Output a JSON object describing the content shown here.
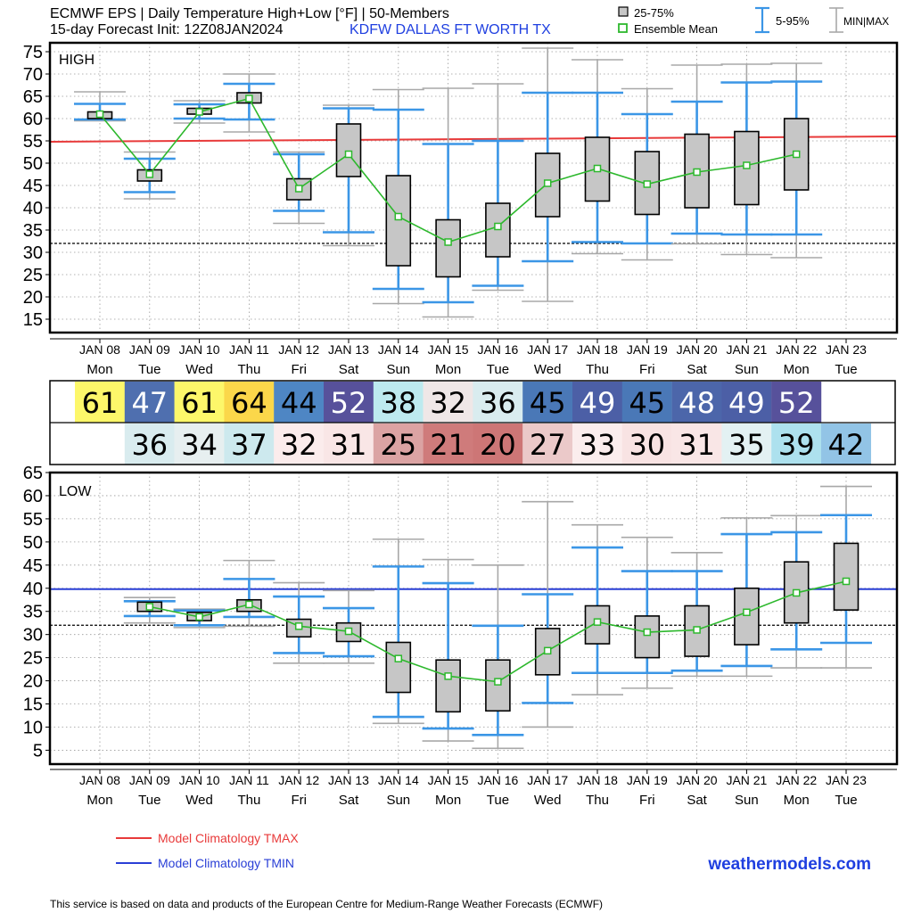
{
  "header": {
    "title_line1": "ECMWF EPS | Daily Temperature High+Low [°F] | 50-Members",
    "title_line2": "15-day Forecast Init: 12Z08JAN2024",
    "station": "KDFW  DALLAS FT WORTH TX"
  },
  "legend_top": {
    "box_label": "25-75%",
    "mean_label": "Ensemble Mean",
    "whisker_label": "5-95%",
    "minmax_label": "MIN|MAX"
  },
  "legend_bottom": {
    "tmax_label": "Model Climatology TMAX",
    "tmin_label": "Model Climatology TMIN"
  },
  "brand": "weathermodels.com",
  "footer": "This service is based on data and products of the European Centre for Medium-Range Weather Forecasts (ECMWF)",
  "colors": {
    "tmax_climo": "#e83a3a",
    "tmin_climo": "#2a3fd6",
    "whisker": "#3b96e6",
    "minmax": "#a8a8a8",
    "box_fill": "#c6c6c6",
    "mean": "#2db82d",
    "station": "#1f3fe0",
    "brand": "#1f3fe0"
  },
  "chart_data": [
    {
      "type": "box",
      "panel_label": "HIGH",
      "ylim": [
        12,
        77
      ],
      "yticks": [
        15,
        20,
        25,
        30,
        35,
        40,
        45,
        50,
        55,
        60,
        65,
        70,
        75
      ],
      "freezing_line": 32,
      "categories": [
        "JAN 08",
        "JAN 09",
        "JAN 10",
        "JAN 11",
        "JAN 12",
        "JAN 13",
        "JAN 14",
        "JAN 15",
        "JAN 16",
        "JAN 17",
        "JAN 18",
        "JAN 19",
        "JAN 20",
        "JAN 21",
        "JAN 22",
        "JAN 23"
      ],
      "weekdays": [
        "Mon",
        "Tue",
        "Wed",
        "Thu",
        "Fri",
        "Sat",
        "Sun",
        "Mon",
        "Tue",
        "Wed",
        "Thu",
        "Fri",
        "Sat",
        "Sun",
        "Mon",
        "Tue"
      ],
      "climatology": [
        54.8,
        56.0
      ],
      "series": [
        {
          "day": 0,
          "min": 59.5,
          "p5": 59.8,
          "q1": 60.0,
          "q3": 61.5,
          "p95": 63.3,
          "max": 66.0,
          "mean": 61.0
        },
        {
          "day": 1,
          "min": 42.0,
          "p5": 43.5,
          "q1": 46.0,
          "q3": 48.5,
          "p95": 51.0,
          "max": 52.5,
          "mean": 47.5
        },
        {
          "day": 2,
          "min": 59.0,
          "p5": 60.0,
          "q1": 61.0,
          "q3": 62.3,
          "p95": 63.2,
          "max": 64.0,
          "mean": 61.5
        },
        {
          "day": 3,
          "min": 57.0,
          "p5": 59.8,
          "q1": 63.5,
          "q3": 65.8,
          "p95": 67.8,
          "max": 70.0,
          "mean": 64.5
        },
        {
          "day": 4,
          "min": 36.5,
          "p5": 39.3,
          "q1": 41.8,
          "q3": 46.5,
          "p95": 52.0,
          "max": 52.5,
          "mean": 44.3
        },
        {
          "day": 5,
          "min": 31.5,
          "p5": 34.5,
          "q1": 47.0,
          "q3": 58.8,
          "p95": 62.3,
          "max": 63.0,
          "mean": 52.0
        },
        {
          "day": 6,
          "min": 18.5,
          "p5": 21.8,
          "q1": 27.0,
          "q3": 47.2,
          "p95": 62.0,
          "max": 66.5,
          "mean": 38.0
        },
        {
          "day": 7,
          "min": 15.5,
          "p5": 18.8,
          "q1": 24.5,
          "q3": 37.3,
          "p95": 54.3,
          "max": 66.8,
          "mean": 32.3
        },
        {
          "day": 8,
          "min": 21.5,
          "p5": 22.5,
          "q1": 29.0,
          "q3": 41.0,
          "p95": 55.0,
          "max": 67.8,
          "mean": 35.8
        },
        {
          "day": 9,
          "min": 19.0,
          "p5": 28.0,
          "q1": 38.0,
          "q3": 52.2,
          "p95": 65.8,
          "max": 75.8,
          "mean": 45.5
        },
        {
          "day": 10,
          "min": 29.7,
          "p5": 32.3,
          "q1": 41.5,
          "q3": 55.8,
          "p95": 65.8,
          "max": 73.2,
          "mean": 48.8
        },
        {
          "day": 11,
          "min": 28.3,
          "p5": 32.0,
          "q1": 38.5,
          "q3": 52.6,
          "p95": 61.0,
          "max": 66.7,
          "mean": 45.3
        },
        {
          "day": 12,
          "min": 31.9,
          "p5": 34.2,
          "q1": 40.0,
          "q3": 56.5,
          "p95": 63.8,
          "max": 72.0,
          "mean": 48.0
        },
        {
          "day": 13,
          "min": 29.5,
          "p5": 34.0,
          "q1": 40.7,
          "q3": 57.1,
          "p95": 68.1,
          "max": 72.2,
          "mean": 49.5
        },
        {
          "day": 14,
          "min": 28.8,
          "p5": 34.0,
          "q1": 44.0,
          "q3": 60.0,
          "p95": 68.3,
          "max": 72.4,
          "mean": 52.0
        }
      ]
    },
    {
      "type": "box",
      "panel_label": "LOW",
      "ylim": [
        2,
        65
      ],
      "yticks": [
        5,
        10,
        15,
        20,
        25,
        30,
        35,
        40,
        45,
        50,
        55,
        60,
        65
      ],
      "freezing_line": 32,
      "categories": [
        "JAN 08",
        "JAN 09",
        "JAN 10",
        "JAN 11",
        "JAN 12",
        "JAN 13",
        "JAN 14",
        "JAN 15",
        "JAN 16",
        "JAN 17",
        "JAN 18",
        "JAN 19",
        "JAN 20",
        "JAN 21",
        "JAN 22",
        "JAN 23"
      ],
      "weekdays": [
        "Mon",
        "Tue",
        "Wed",
        "Thu",
        "Fri",
        "Sat",
        "Sun",
        "Mon",
        "Tue",
        "Wed",
        "Thu",
        "Fri",
        "Sat",
        "Sun",
        "Mon",
        "Tue"
      ],
      "climatology": [
        39.8,
        39.8
      ],
      "series": [
        {
          "day": 1,
          "min": 32.5,
          "p5": 34.0,
          "q1": 35.0,
          "q3": 37.0,
          "p95": 37.2,
          "max": 38.0,
          "mean": 36.0
        },
        {
          "day": 2,
          "min": 31.5,
          "p5": 32.0,
          "q1": 33.0,
          "q3": 34.8,
          "p95": 35.2,
          "max": 35.5,
          "mean": 33.8
        },
        {
          "day": 3,
          "min": 31.8,
          "p5": 33.8,
          "q1": 35.0,
          "q3": 37.5,
          "p95": 42.0,
          "max": 46.0,
          "mean": 36.5
        },
        {
          "day": 4,
          "min": 23.8,
          "p5": 26.0,
          "q1": 29.5,
          "q3": 33.3,
          "p95": 38.2,
          "max": 41.2,
          "mean": 31.8
        },
        {
          "day": 5,
          "min": 23.8,
          "p5": 25.3,
          "q1": 28.5,
          "q3": 32.5,
          "p95": 35.7,
          "max": 39.5,
          "mean": 30.7
        },
        {
          "day": 6,
          "min": 10.8,
          "p5": 12.2,
          "q1": 17.5,
          "q3": 28.3,
          "p95": 44.7,
          "max": 50.6,
          "mean": 24.8
        },
        {
          "day": 7,
          "min": 7.0,
          "p5": 9.7,
          "q1": 13.3,
          "q3": 24.5,
          "p95": 41.1,
          "max": 46.2,
          "mean": 21.0
        },
        {
          "day": 8,
          "min": 5.4,
          "p5": 8.3,
          "q1": 13.5,
          "q3": 24.5,
          "p95": 31.9,
          "max": 45.0,
          "mean": 19.8
        },
        {
          "day": 9,
          "min": 10.0,
          "p5": 15.2,
          "q1": 21.3,
          "q3": 31.3,
          "p95": 38.7,
          "max": 58.7,
          "mean": 26.5
        },
        {
          "day": 10,
          "min": 17.0,
          "p5": 21.7,
          "q1": 28.0,
          "q3": 36.2,
          "p95": 48.8,
          "max": 53.7,
          "mean": 32.7
        },
        {
          "day": 11,
          "min": 18.4,
          "p5": 21.7,
          "q1": 25.0,
          "q3": 34.0,
          "p95": 43.7,
          "max": 51.0,
          "mean": 30.5
        },
        {
          "day": 12,
          "min": 21.0,
          "p5": 22.2,
          "q1": 25.3,
          "q3": 36.2,
          "p95": 43.7,
          "max": 47.7,
          "mean": 31.0
        },
        {
          "day": 13,
          "min": 21.0,
          "p5": 23.2,
          "q1": 27.8,
          "q3": 40.0,
          "p95": 51.7,
          "max": 55.2,
          "mean": 34.8
        },
        {
          "day": 14,
          "min": 22.8,
          "p5": 26.8,
          "q1": 32.5,
          "q3": 45.7,
          "p95": 52.1,
          "max": 55.7,
          "mean": 39.0
        },
        {
          "day": 15,
          "min": 22.8,
          "p5": 28.2,
          "q1": 35.3,
          "q3": 49.7,
          "p95": 55.8,
          "max": 62.0,
          "mean": 41.5
        }
      ]
    },
    {
      "type": "table",
      "rows": [
        {
          "name": "high_mean",
          "values": [
            {
              "day": 0,
              "text": "61",
              "bg": "#fdf76a",
              "fg": "#000000"
            },
            {
              "day": 1,
              "text": "47",
              "bg": "#4f6faf",
              "fg": "#ffffff"
            },
            {
              "day": 2,
              "text": "61",
              "bg": "#fdf76a",
              "fg": "#000000"
            },
            {
              "day": 3,
              "text": "64",
              "bg": "#fbd74a",
              "fg": "#000000"
            },
            {
              "day": 4,
              "text": "44",
              "bg": "#4e86c4",
              "fg": "#000000"
            },
            {
              "day": 5,
              "text": "52",
              "bg": "#57519b",
              "fg": "#ffffff"
            },
            {
              "day": 6,
              "text": "38",
              "bg": "#bdeaef",
              "fg": "#000000"
            },
            {
              "day": 7,
              "text": "32",
              "bg": "#efe7e7",
              "fg": "#000000"
            },
            {
              "day": 8,
              "text": "36",
              "bg": "#d9ecef",
              "fg": "#000000"
            },
            {
              "day": 9,
              "text": "45",
              "bg": "#4a78b7",
              "fg": "#000000"
            },
            {
              "day": 10,
              "text": "49",
              "bg": "#4c5fa6",
              "fg": "#ffffff"
            },
            {
              "day": 11,
              "text": "45",
              "bg": "#4a78b7",
              "fg": "#000000"
            },
            {
              "day": 12,
              "text": "48",
              "bg": "#4c66aa",
              "fg": "#ffffff"
            },
            {
              "day": 13,
              "text": "49",
              "bg": "#4c5fa6",
              "fg": "#ffffff"
            },
            {
              "day": 14,
              "text": "52",
              "bg": "#57519b",
              "fg": "#ffffff"
            }
          ]
        },
        {
          "name": "low_mean",
          "values": [
            {
              "day": 1,
              "text": "36",
              "bg": "#d9ecef",
              "fg": "#000000"
            },
            {
              "day": 2,
              "text": "34",
              "bg": "#e7eff0",
              "fg": "#000000"
            },
            {
              "day": 3,
              "text": "37",
              "bg": "#cde9ee",
              "fg": "#000000"
            },
            {
              "day": 4,
              "text": "32",
              "bg": "#fbecec",
              "fg": "#000000"
            },
            {
              "day": 5,
              "text": "31",
              "bg": "#f9e6e6",
              "fg": "#000000"
            },
            {
              "day": 6,
              "text": "25",
              "bg": "#dba3a3",
              "fg": "#000000"
            },
            {
              "day": 7,
              "text": "21",
              "bg": "#cf7b7b",
              "fg": "#000000"
            },
            {
              "day": 8,
              "text": "20",
              "bg": "#cd7676",
              "fg": "#000000"
            },
            {
              "day": 9,
              "text": "27",
              "bg": "#ebc9c9",
              "fg": "#000000"
            },
            {
              "day": 10,
              "text": "33",
              "bg": "#fbeded",
              "fg": "#000000"
            },
            {
              "day": 11,
              "text": "30",
              "bg": "#f8e3e3",
              "fg": "#000000"
            },
            {
              "day": 12,
              "text": "31",
              "bg": "#f9e6e6",
              "fg": "#000000"
            },
            {
              "day": 13,
              "text": "35",
              "bg": "#e3f1f3",
              "fg": "#000000"
            },
            {
              "day": 14,
              "text": "39",
              "bg": "#ade1ee",
              "fg": "#000000"
            },
            {
              "day": 15,
              "text": "42",
              "bg": "#92c4e6",
              "fg": "#000000"
            }
          ]
        }
      ]
    }
  ]
}
